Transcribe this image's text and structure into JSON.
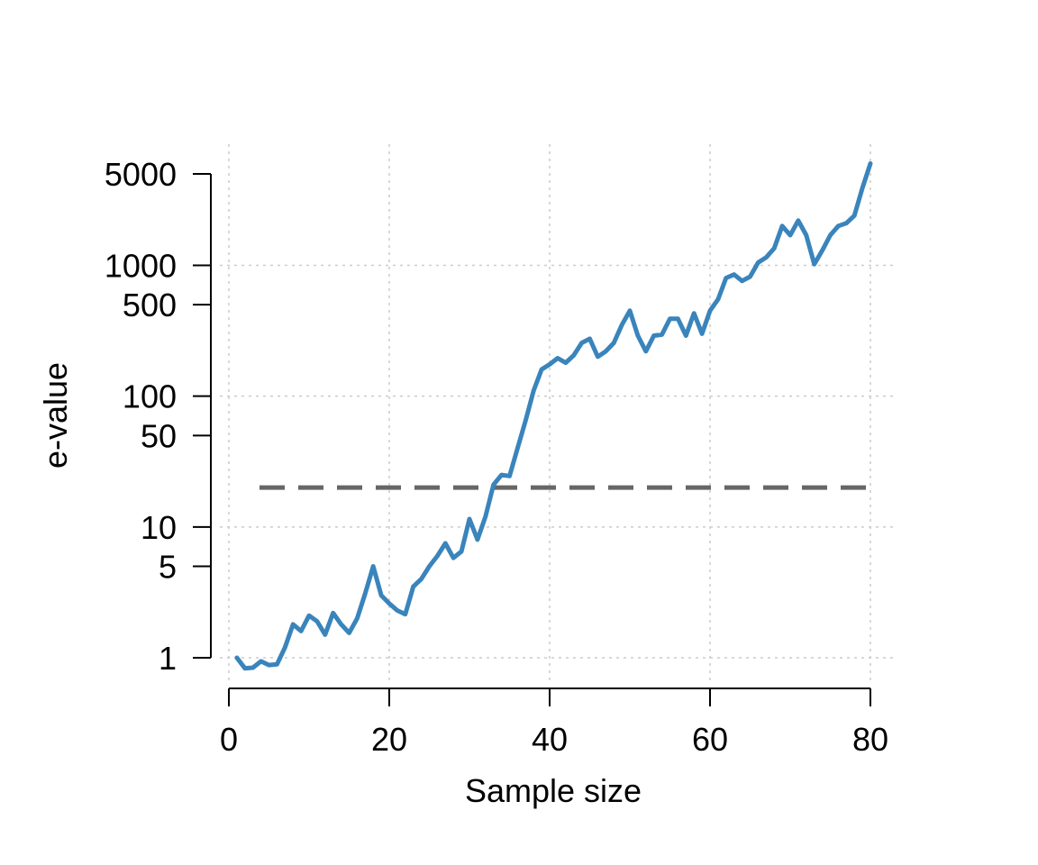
{
  "chart_data": {
    "type": "line",
    "title": "",
    "xlabel": "Sample size",
    "ylabel": "e-value",
    "x_scale": "linear",
    "y_scale": "log",
    "xlim": [
      0,
      80
    ],
    "ylim": [
      0.75,
      6500
    ],
    "x_ticks": [
      0,
      20,
      40,
      60,
      80
    ],
    "x_tick_labels": [
      "0",
      "20",
      "40",
      "60",
      "80"
    ],
    "y_ticks": [
      1,
      5,
      10,
      50,
      100,
      500,
      1000,
      5000
    ],
    "y_tick_labels": [
      "1",
      "5",
      "10",
      "50",
      "100",
      "500",
      "1000",
      "5000"
    ],
    "grid": true,
    "grid_x": [
      0,
      20,
      40,
      60,
      80
    ],
    "grid_y": [
      1,
      10,
      100,
      1000
    ],
    "reference_line": {
      "y": 20,
      "style": "dashed",
      "color": "#666666"
    },
    "series": [
      {
        "color": "#3a84bc",
        "x": [
          1,
          2,
          3,
          4,
          5,
          6,
          7,
          8,
          9,
          10,
          11,
          12,
          13,
          14,
          15,
          16,
          17,
          18,
          19,
          20,
          21,
          22,
          23,
          24,
          25,
          26,
          27,
          28,
          29,
          30,
          31,
          32,
          33,
          34,
          35,
          36,
          37,
          38,
          39,
          40,
          41,
          42,
          43,
          44,
          45,
          46,
          47,
          48,
          49,
          50,
          51,
          52,
          53,
          54,
          55,
          56,
          57,
          58,
          59,
          60,
          61,
          62,
          63,
          64,
          65,
          66,
          67,
          68,
          69,
          70,
          71,
          72,
          73,
          74,
          75,
          76,
          77,
          78,
          79,
          80
        ],
        "values": [
          1.0,
          0.83,
          0.84,
          0.94,
          0.88,
          0.89,
          1.2,
          1.8,
          1.6,
          2.1,
          1.9,
          1.5,
          2.2,
          1.8,
          1.55,
          2.0,
          3.1,
          5.0,
          3.0,
          2.6,
          2.3,
          2.15,
          3.5,
          4.0,
          5.0,
          6.0,
          7.5,
          5.8,
          6.5,
          11.5,
          8.0,
          12.0,
          21.0,
          25.0,
          24.5,
          40.0,
          65.0,
          110.0,
          160.0,
          175.0,
          195.0,
          180.0,
          205.0,
          255.0,
          275.0,
          200.0,
          220.0,
          255.0,
          350.0,
          450.0,
          290.0,
          220.0,
          290.0,
          295.0,
          390.0,
          390.0,
          290.0,
          430.0,
          300.0,
          450.0,
          550.0,
          800.0,
          850.0,
          760.0,
          820.0,
          1050.0,
          1150.0,
          1350.0,
          2000.0,
          1700.0,
          2200.0,
          1700.0,
          1020.0,
          1300.0,
          1700.0,
          2000.0,
          2100.0,
          2400.0,
          3900.0,
          6000.0
        ]
      }
    ]
  }
}
